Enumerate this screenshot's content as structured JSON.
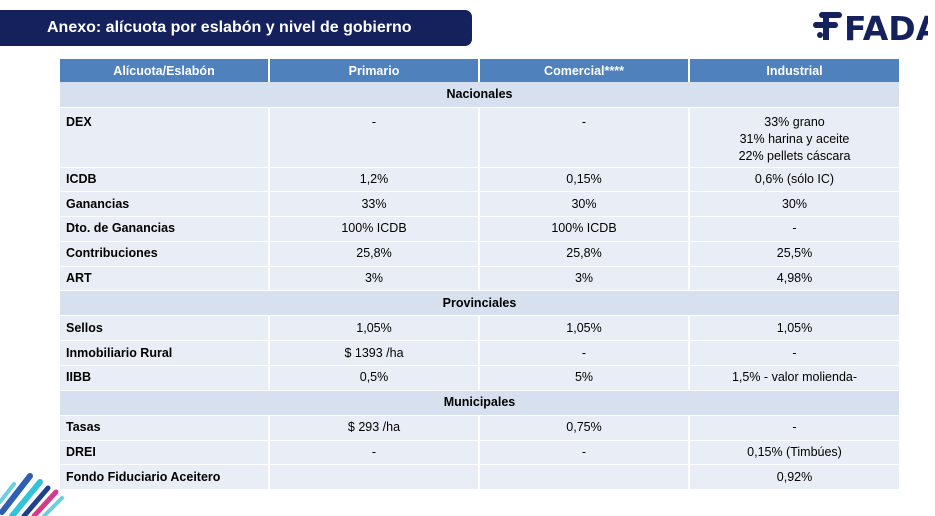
{
  "header": {
    "title": "Anexo: alícuota por eslabón y nivel de gobierno",
    "logo_text": "FADA"
  },
  "colors": {
    "banner": "#14215c",
    "table_header": "#4f81bd",
    "row_fill": "#e9eef6",
    "section_fill": "#d7e0ee",
    "logo": "#14215c"
  },
  "table": {
    "headers": [
      "Alícuota/Eslabón",
      "Primario",
      "Comercial****",
      "Industrial"
    ],
    "sections": [
      {
        "title": "Nacionales",
        "rows": [
          {
            "label": "DEX",
            "primario": "-",
            "comercial": "-",
            "industrial": [
              "33% grano",
              "31% harina y aceite",
              "22% pellets cáscara"
            ]
          },
          {
            "label": "ICDB",
            "primario": "1,2%",
            "comercial": "0,15%",
            "industrial": "0,6% (sólo IC)"
          },
          {
            "label": "Ganancias",
            "primario": "33%",
            "comercial": "30%",
            "industrial": "30%"
          },
          {
            "label": "Dto. de Ganancias",
            "primario": "100% ICDB",
            "comercial": "100% ICDB",
            "industrial": "-"
          },
          {
            "label": "Contribuciones",
            "primario": "25,8%",
            "comercial": "25,8%",
            "industrial": "25,5%"
          },
          {
            "label": "ART",
            "primario": "3%",
            "comercial": "3%",
            "industrial": "4,98%"
          }
        ]
      },
      {
        "title": "Provinciales",
        "rows": [
          {
            "label": "Sellos",
            "primario": "1,05%",
            "comercial": "1,05%",
            "industrial": "1,05%"
          },
          {
            "label": "Inmobiliario Rural",
            "primario": "$ 1393 /ha",
            "comercial": "-",
            "industrial": "-"
          },
          {
            "label": "IIBB",
            "primario": "0,5%",
            "comercial": "5%",
            "industrial": "1,5% - valor molienda-"
          }
        ]
      },
      {
        "title": "Municipales",
        "rows": [
          {
            "label": "Tasas",
            "primario": "$ 293 /ha",
            "comercial": "0,75%",
            "industrial": "-"
          },
          {
            "label": "DREI",
            "primario": "-",
            "comercial": "-",
            "industrial": "0,15% (Timbúes)"
          },
          {
            "label": "Fondo Fiduciario Aceitero",
            "primario": "",
            "comercial": "",
            "industrial": "0,92%"
          }
        ]
      }
    ]
  }
}
